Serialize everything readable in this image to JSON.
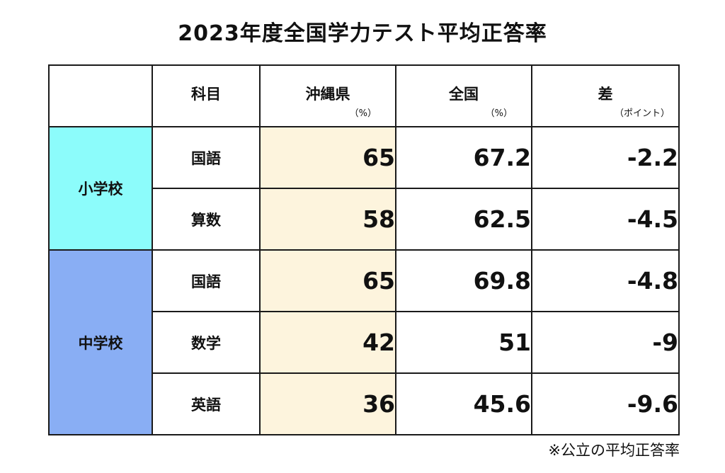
{
  "title": "2023年度全国学力テスト平均正答率",
  "footnote": "※公立の平均正答率",
  "colors": {
    "elementary": "#8cfcfb",
    "junior_high": "#89aef4",
    "okinawa_column": "#fdf4dd"
  },
  "chart_data": {
    "type": "table",
    "title": "2023年度全国学力テスト平均正答率",
    "columns": [
      {
        "label": "",
        "unit": ""
      },
      {
        "label": "科目",
        "unit": ""
      },
      {
        "label": "沖縄県",
        "unit": "（%）"
      },
      {
        "label": "全国",
        "unit": "（%）"
      },
      {
        "label": "差",
        "unit": "（ポイント）"
      }
    ],
    "groups": [
      {
        "school": "小学校",
        "rows": [
          {
            "subject": "国語",
            "okinawa": "65",
            "national": "67.2",
            "diff": "-2.2"
          },
          {
            "subject": "算数",
            "okinawa": "58",
            "national": "62.5",
            "diff": "-4.5"
          }
        ]
      },
      {
        "school": "中学校",
        "rows": [
          {
            "subject": "国語",
            "okinawa": "65",
            "national": "69.8",
            "diff": "-4.8"
          },
          {
            "subject": "数学",
            "okinawa": "42",
            "national": "51",
            "diff": "-9"
          },
          {
            "subject": "英語",
            "okinawa": "36",
            "national": "45.6",
            "diff": "-9.6"
          }
        ]
      }
    ],
    "note": "※公立の平均正答率"
  }
}
